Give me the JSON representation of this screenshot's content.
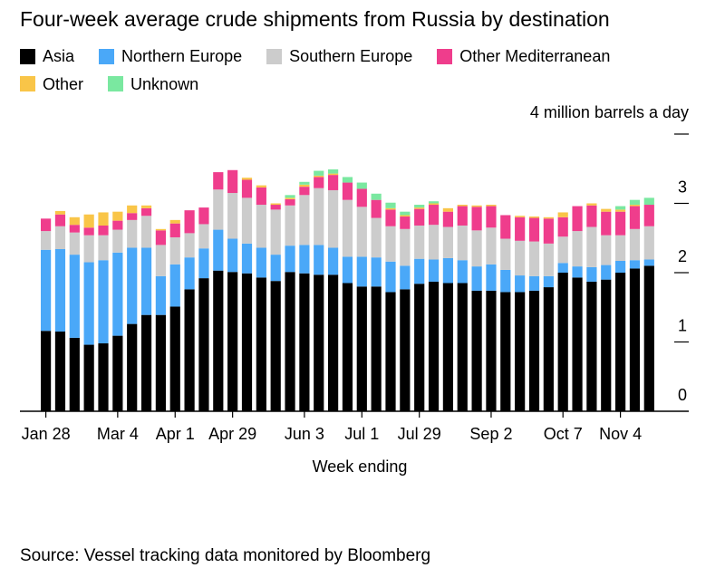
{
  "chart_data": {
    "type": "bar",
    "stacked": true,
    "title": "Four-week average crude shipments from Russia by destination",
    "unit_label": "4 million barrels a day",
    "xlabel": "Week ending",
    "ylabel": "",
    "ylim": [
      0,
      4
    ],
    "y_ticks": [
      {
        "value": 0,
        "label": "0"
      },
      {
        "value": 1,
        "label": "1"
      },
      {
        "value": 2,
        "label": "2"
      },
      {
        "value": 3,
        "label": "3"
      }
    ],
    "x_tick_labels": [
      {
        "index": 0,
        "label": "Jan 28"
      },
      {
        "index": 5,
        "label": "Mar 4"
      },
      {
        "index": 9,
        "label": "Apr 1"
      },
      {
        "index": 13,
        "label": "Apr 29"
      },
      {
        "index": 18,
        "label": "Jun 3"
      },
      {
        "index": 22,
        "label": "Jul 1"
      },
      {
        "index": 26,
        "label": "Jul 29"
      },
      {
        "index": 31,
        "label": "Sep 2"
      },
      {
        "index": 36,
        "label": "Oct 7"
      },
      {
        "index": 40,
        "label": "Nov 4"
      }
    ],
    "legend_position": "top-left",
    "grid": false,
    "series": [
      {
        "name": "Asia",
        "color": "#000000",
        "values": [
          1.16,
          1.15,
          1.06,
          0.96,
          0.98,
          1.09,
          1.26,
          1.39,
          1.39,
          1.51,
          1.76,
          1.92,
          2.03,
          2.01,
          1.99,
          1.93,
          1.88,
          2.01,
          1.99,
          1.97,
          1.97,
          1.85,
          1.8,
          1.8,
          1.72,
          1.76,
          1.84,
          1.87,
          1.85,
          1.85,
          1.74,
          1.74,
          1.72,
          1.72,
          1.74,
          1.79,
          2.0,
          1.93,
          1.87,
          1.9,
          2.0,
          2.06,
          2.1
        ]
      },
      {
        "name": "Northern Europe",
        "color": "#4aa8f8",
        "values": [
          1.17,
          1.19,
          1.2,
          1.19,
          1.2,
          1.2,
          1.1,
          0.97,
          0.56,
          0.61,
          0.46,
          0.43,
          0.59,
          0.48,
          0.43,
          0.43,
          0.38,
          0.38,
          0.41,
          0.43,
          0.39,
          0.38,
          0.43,
          0.42,
          0.44,
          0.34,
          0.36,
          0.32,
          0.36,
          0.33,
          0.35,
          0.38,
          0.32,
          0.24,
          0.21,
          0.16,
          0.14,
          0.16,
          0.21,
          0.21,
          0.17,
          0.12,
          0.09
        ]
      },
      {
        "name": "Southern Europe",
        "color": "#cccccc",
        "values": [
          0.27,
          0.33,
          0.32,
          0.39,
          0.36,
          0.33,
          0.4,
          0.46,
          0.45,
          0.39,
          0.35,
          0.35,
          0.58,
          0.66,
          0.66,
          0.62,
          0.65,
          0.58,
          0.72,
          0.82,
          0.83,
          0.82,
          0.72,
          0.57,
          0.51,
          0.53,
          0.48,
          0.5,
          0.45,
          0.5,
          0.52,
          0.53,
          0.45,
          0.5,
          0.5,
          0.47,
          0.38,
          0.51,
          0.58,
          0.43,
          0.37,
          0.45,
          0.48
        ]
      },
      {
        "name": "Other Mediterranean",
        "color": "#ef3d8c",
        "values": [
          0.18,
          0.17,
          0.11,
          0.11,
          0.14,
          0.13,
          0.1,
          0.11,
          0.21,
          0.2,
          0.33,
          0.24,
          0.25,
          0.33,
          0.26,
          0.25,
          0.07,
          0.09,
          0.12,
          0.16,
          0.22,
          0.25,
          0.26,
          0.26,
          0.24,
          0.18,
          0.24,
          0.29,
          0.22,
          0.28,
          0.34,
          0.31,
          0.34,
          0.34,
          0.34,
          0.36,
          0.28,
          0.36,
          0.31,
          0.34,
          0.34,
          0.33,
          0.31
        ]
      },
      {
        "name": "Other",
        "color": "#f9c548",
        "values": [
          0.0,
          0.05,
          0.11,
          0.19,
          0.19,
          0.13,
          0.11,
          0.04,
          0.02,
          0.05,
          0.0,
          0.0,
          0.0,
          0.0,
          0.03,
          0.03,
          0.02,
          0.02,
          0.03,
          0.02,
          0.02,
          0.0,
          0.0,
          0.0,
          0.02,
          0.02,
          0.02,
          0.02,
          0.05,
          0.02,
          0.02,
          0.02,
          0.0,
          0.02,
          0.02,
          0.02,
          0.07,
          0.0,
          0.03,
          0.04,
          0.03,
          0.02,
          0.0
        ]
      },
      {
        "name": "Unknown",
        "color": "#7ae8a0",
        "values": [
          0.0,
          0.0,
          0.0,
          0.0,
          0.0,
          0.0,
          0.0,
          0.0,
          0.0,
          0.0,
          0.0,
          0.0,
          0.0,
          0.0,
          0.0,
          0.0,
          0.0,
          0.04,
          0.04,
          0.07,
          0.06,
          0.08,
          0.09,
          0.09,
          0.08,
          0.05,
          0.04,
          0.03,
          0.0,
          0.0,
          0.0,
          0.0,
          0.0,
          0.0,
          0.0,
          0.0,
          0.0,
          0.0,
          0.0,
          0.0,
          0.05,
          0.07,
          0.1
        ]
      }
    ]
  },
  "source": "Source: Vessel tracking data monitored by Bloomberg"
}
